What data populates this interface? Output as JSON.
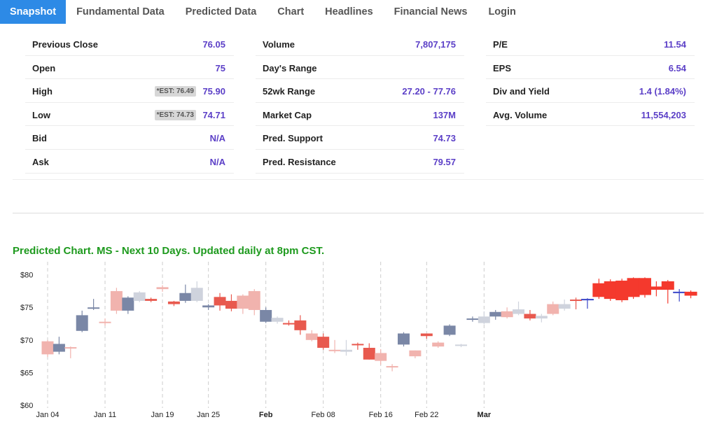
{
  "tabs": [
    "Snapshot",
    "Fundamental Data",
    "Predicted Data",
    "Chart",
    "Headlines",
    "Financial News",
    "Login"
  ],
  "stats": {
    "col1": [
      {
        "label": "Previous Close",
        "value": "76.05",
        "est": ""
      },
      {
        "label": "Open",
        "value": "75",
        "est": ""
      },
      {
        "label": "High",
        "value": "75.90",
        "est": "*EST: 76.49"
      },
      {
        "label": "Low",
        "value": "74.71",
        "est": "*EST: 74.73"
      },
      {
        "label": "Bid",
        "value": "N/A",
        "est": ""
      },
      {
        "label": "Ask",
        "value": "N/A",
        "est": ""
      }
    ],
    "col2": [
      {
        "label": "Volume",
        "value": "7,807,175"
      },
      {
        "label": "Day's Range",
        "value": ""
      },
      {
        "label": "52wk Range",
        "value": "27.20 - 77.76"
      },
      {
        "label": "Market Cap",
        "value": "137M"
      },
      {
        "label": "Pred. Support",
        "value": "74.73"
      },
      {
        "label": "Pred. Resistance",
        "value": "79.57"
      }
    ],
    "col3": [
      {
        "label": "P/E",
        "value": "11.54"
      },
      {
        "label": "EPS",
        "value": "6.54"
      },
      {
        "label": "Div and Yield",
        "value": "1.4 (1.84%)"
      },
      {
        "label": "Avg. Volume",
        "value": "11,554,203"
      }
    ]
  },
  "chart_title": "Predicted Chart. MS - Next 10 Days. Updated daily at 8pm CST.",
  "chart_data": {
    "type": "candlestick",
    "ylim": [
      60,
      82
    ],
    "yticks": [
      "$60",
      "$65",
      "$70",
      "$75",
      "$80"
    ],
    "ytick_values": [
      60,
      65,
      70,
      75,
      80
    ],
    "xticks": [
      {
        "label": "Jan 04",
        "index": 0,
        "bold": false
      },
      {
        "label": "Jan 11",
        "index": 5,
        "bold": false
      },
      {
        "label": "Jan 19",
        "index": 10,
        "bold": false
      },
      {
        "label": "Jan 25",
        "index": 14,
        "bold": false
      },
      {
        "label": "Feb",
        "index": 19,
        "bold": true
      },
      {
        "label": "Feb 08",
        "index": 24,
        "bold": false
      },
      {
        "label": "Feb 16",
        "index": 29,
        "bold": false
      },
      {
        "label": "Feb 22",
        "index": 33,
        "bold": false
      },
      {
        "label": "Mar",
        "index": 38,
        "bold": true
      }
    ],
    "colors": {
      "up_dark": "#7a87a6",
      "up_light": "#cfd3dd",
      "down_dark": "#e8594e",
      "down_light": "#f1b3ae",
      "pred_red": "#f4392d",
      "pred_blue": "#3a46c8",
      "grid": "#cccccc",
      "axis": "#999999"
    },
    "candles": [
      {
        "o": 67.8,
        "h": 70.0,
        "l": 67.4,
        "c": 69.8,
        "s": "down_light"
      },
      {
        "o": 68.2,
        "h": 70.5,
        "l": 67.8,
        "c": 69.4,
        "s": "up_dark"
      },
      {
        "o": 68.9,
        "h": 69.0,
        "l": 67.2,
        "c": 68.9,
        "s": "down_light"
      },
      {
        "o": 71.4,
        "h": 74.5,
        "l": 71.2,
        "c": 73.8,
        "s": "up_dark"
      },
      {
        "o": 75.0,
        "h": 76.3,
        "l": 74.6,
        "c": 75.0,
        "s": "up_dark"
      },
      {
        "o": 72.8,
        "h": 73.3,
        "l": 72.2,
        "c": 72.8,
        "s": "down_light"
      },
      {
        "o": 74.5,
        "h": 78.0,
        "l": 74.0,
        "c": 77.5,
        "s": "down_light"
      },
      {
        "o": 74.5,
        "h": 76.7,
        "l": 74.0,
        "c": 76.5,
        "s": "up_dark"
      },
      {
        "o": 76.0,
        "h": 77.5,
        "l": 75.8,
        "c": 77.3,
        "s": "up_light"
      },
      {
        "o": 76.3,
        "h": 76.5,
        "l": 75.8,
        "c": 76.0,
        "s": "down_dark"
      },
      {
        "o": 77.8,
        "h": 78.4,
        "l": 77.4,
        "c": 78.1,
        "s": "down_light"
      },
      {
        "o": 75.5,
        "h": 76.0,
        "l": 75.2,
        "c": 75.9,
        "s": "down_dark"
      },
      {
        "o": 76.0,
        "h": 78.5,
        "l": 75.7,
        "c": 77.2,
        "s": "up_dark"
      },
      {
        "o": 76.0,
        "h": 79.0,
        "l": 75.8,
        "c": 78.0,
        "s": "up_light"
      },
      {
        "o": 75.0,
        "h": 75.5,
        "l": 74.6,
        "c": 75.3,
        "s": "up_dark"
      },
      {
        "o": 76.6,
        "h": 77.2,
        "l": 74.5,
        "c": 75.3,
        "s": "down_dark"
      },
      {
        "o": 76.0,
        "h": 77.0,
        "l": 74.4,
        "c": 74.8,
        "s": "down_dark"
      },
      {
        "o": 74.8,
        "h": 77.0,
        "l": 74.0,
        "c": 76.8,
        "s": "down_light"
      },
      {
        "o": 74.6,
        "h": 77.8,
        "l": 73.8,
        "c": 77.5,
        "s": "down_light"
      },
      {
        "o": 74.6,
        "h": 75.0,
        "l": 72.6,
        "c": 72.8,
        "s": "up_dark"
      },
      {
        "o": 72.8,
        "h": 73.6,
        "l": 72.5,
        "c": 73.4,
        "s": "up_light"
      },
      {
        "o": 72.6,
        "h": 73.0,
        "l": 72.2,
        "c": 72.5,
        "s": "down_dark"
      },
      {
        "o": 73.0,
        "h": 73.8,
        "l": 70.8,
        "c": 71.5,
        "s": "down_dark"
      },
      {
        "o": 71.0,
        "h": 71.5,
        "l": 69.8,
        "c": 70.0,
        "s": "down_light"
      },
      {
        "o": 70.5,
        "h": 71.0,
        "l": 68.5,
        "c": 68.8,
        "s": "down_dark"
      },
      {
        "o": 68.3,
        "h": 70.0,
        "l": 68.0,
        "c": 68.5,
        "s": "down_light"
      },
      {
        "o": 68.5,
        "h": 70.0,
        "l": 67.6,
        "c": 68.2,
        "s": "up_light"
      },
      {
        "o": 69.2,
        "h": 69.6,
        "l": 68.5,
        "c": 69.4,
        "s": "down_dark"
      },
      {
        "o": 68.8,
        "h": 69.5,
        "l": 67.0,
        "c": 67.0,
        "s": "down_dark"
      },
      {
        "o": 68.0,
        "h": 68.6,
        "l": 66.2,
        "c": 66.8,
        "s": "down_light"
      },
      {
        "o": 66.0,
        "h": 66.3,
        "l": 65.2,
        "c": 66.0,
        "s": "down_light"
      },
      {
        "o": 69.3,
        "h": 71.2,
        "l": 69.0,
        "c": 71.0,
        "s": "up_dark"
      },
      {
        "o": 67.5,
        "h": 68.4,
        "l": 67.2,
        "c": 68.4,
        "s": "down_light"
      },
      {
        "o": 70.6,
        "h": 70.9,
        "l": 70.2,
        "c": 71.0,
        "s": "down_dark"
      },
      {
        "o": 69.0,
        "h": 69.8,
        "l": 68.8,
        "c": 69.6,
        "s": "down_light"
      },
      {
        "o": 70.8,
        "h": 72.4,
        "l": 70.6,
        "c": 72.2,
        "s": "up_dark"
      },
      {
        "o": 69.1,
        "h": 69.4,
        "l": 68.9,
        "c": 69.3,
        "s": "up_light"
      },
      {
        "o": 73.1,
        "h": 73.6,
        "l": 72.8,
        "c": 73.3,
        "s": "up_dark"
      },
      {
        "o": 72.6,
        "h": 74.4,
        "l": 72.4,
        "c": 73.6,
        "s": "up_light"
      },
      {
        "o": 73.6,
        "h": 74.6,
        "l": 73.1,
        "c": 74.3,
        "s": "up_dark"
      },
      {
        "o": 73.5,
        "h": 75.0,
        "l": 73.3,
        "c": 74.4,
        "s": "down_light"
      },
      {
        "o": 74.0,
        "h": 75.9,
        "l": 73.8,
        "c": 74.7,
        "s": "up_light"
      },
      {
        "o": 73.3,
        "h": 74.6,
        "l": 73.0,
        "c": 74.0,
        "s": "down_dark"
      },
      {
        "o": 73.3,
        "h": 74.0,
        "l": 72.7,
        "c": 73.7,
        "s": "up_light"
      },
      {
        "o": 74.0,
        "h": 75.9,
        "l": 73.8,
        "c": 75.5,
        "s": "down_light"
      },
      {
        "o": 74.8,
        "h": 76.2,
        "l": 74.5,
        "c": 75.5,
        "s": "up_light"
      },
      {
        "o": 76.2,
        "h": 76.5,
        "l": 74.7,
        "c": 76.0,
        "s": "down_dark"
      },
      {
        "o": 76.2,
        "h": 76.4,
        "l": 74.8,
        "c": 76.3,
        "s": "pred_blue"
      },
      {
        "o": 76.6,
        "h": 79.4,
        "l": 76.3,
        "c": 78.7,
        "s": "pred_red"
      },
      {
        "o": 76.3,
        "h": 79.3,
        "l": 76.0,
        "c": 79.0,
        "s": "pred_red"
      },
      {
        "o": 76.1,
        "h": 79.4,
        "l": 75.8,
        "c": 79.1,
        "s": "pred_red"
      },
      {
        "o": 76.6,
        "h": 79.6,
        "l": 76.3,
        "c": 79.5,
        "s": "pred_red"
      },
      {
        "o": 76.9,
        "h": 79.6,
        "l": 76.5,
        "c": 79.5,
        "s": "pred_red"
      },
      {
        "o": 77.7,
        "h": 79.0,
        "l": 76.7,
        "c": 78.2,
        "s": "pred_red"
      },
      {
        "o": 77.7,
        "h": 79.2,
        "l": 75.6,
        "c": 79.0,
        "s": "pred_red"
      },
      {
        "o": 77.2,
        "h": 77.8,
        "l": 75.9,
        "c": 77.4,
        "s": "pred_blue"
      },
      {
        "o": 76.8,
        "h": 77.6,
        "l": 76.4,
        "c": 77.4,
        "s": "pred_red"
      }
    ]
  }
}
